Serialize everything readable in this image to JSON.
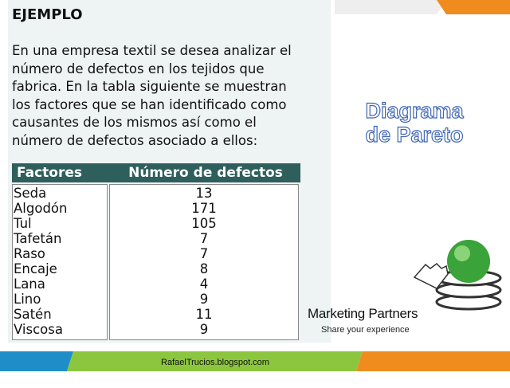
{
  "example": {
    "heading": "EJEMPLO",
    "paragraph_lines": [
      "En una empresa textil se desea analizar el",
      "número de defectos en los tejidos que",
      "fabrica. En la tabla siguiente se muestran",
      "los factores que se han identificado como",
      "causantes de los mismos así como el",
      "número de defectos asociado a ellos:"
    ]
  },
  "table": {
    "headers": [
      "Factores",
      "Número de defectos"
    ],
    "rows": [
      [
        "Seda",
        13
      ],
      [
        "Algodón",
        171
      ],
      [
        "Tul",
        105
      ],
      [
        "Tafetán",
        7
      ],
      [
        "Raso",
        7
      ],
      [
        "Encaje",
        8
      ],
      [
        "Lana",
        4
      ],
      [
        "Lino",
        9
      ],
      [
        "Satén",
        11
      ],
      [
        "Viscosa",
        9
      ]
    ]
  },
  "side_title": [
    "Diagrama",
    "de Pareto"
  ],
  "logo": {
    "name": "Marketing Partners",
    "tagline": "Share your experience"
  },
  "footer": {
    "text": "RafaelTrucios.blogspot.com"
  }
}
